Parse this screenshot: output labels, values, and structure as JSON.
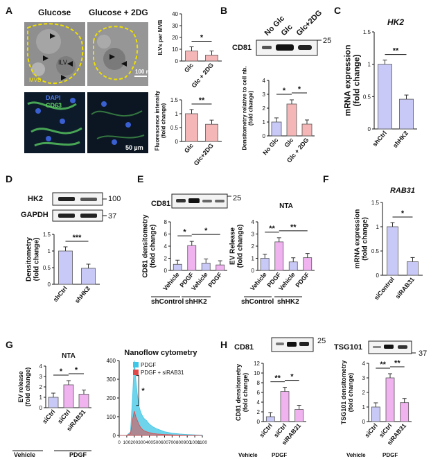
{
  "panels": {
    "A": {
      "letter": "A",
      "micrograph_labels": [
        "Glucose",
        "Glucose + 2DG"
      ],
      "em_labels": {
        "ilv": "ILV",
        "mvb": "MVB",
        "scale": "100 nm"
      },
      "fluor_labels": {
        "dapi": "DAPI",
        "cd63": "CD63",
        "scale": "50 µm"
      }
    },
    "B": {
      "letter": "B",
      "blot_label": "CD81",
      "lane_labels": [
        "No Glc",
        "Glc",
        "Glc+2DG"
      ],
      "marker": "25"
    },
    "C": {
      "letter": "C",
      "title": "HK2"
    },
    "D": {
      "letter": "D",
      "blot_labels": [
        "HK2",
        "GAPDH"
      ],
      "markers": [
        "100",
        "37"
      ]
    },
    "E": {
      "letter": "E",
      "blot_label": "CD81",
      "marker": "25",
      "group_labels": [
        "shControl",
        "shHK2"
      ]
    },
    "F": {
      "letter": "F",
      "title": "RAB31"
    },
    "G": {
      "letter": "G",
      "group_labels": [
        "Vehicle",
        "PDGF"
      ]
    },
    "H": {
      "letter": "H",
      "blot_labels": [
        "CD81",
        "TSG101"
      ],
      "markers": [
        "25",
        "37"
      ],
      "group_labels": [
        "Vehicle",
        "PDGF"
      ]
    }
  },
  "chart_data": [
    {
      "id": "A-ilv",
      "type": "bar",
      "ylabel": "ILVs per MVB",
      "categories": [
        "Glc",
        "Glc + 2DG"
      ],
      "values": [
        8.5,
        5
      ],
      "ylim": [
        0,
        40
      ],
      "yticks": [
        0,
        10,
        20,
        30,
        40
      ],
      "colors": [
        "#f4b6b6",
        "#f4b6b6"
      ],
      "sig": [
        {
          "from": 0,
          "to": 1,
          "label": "*"
        }
      ]
    },
    {
      "id": "A-fluor",
      "type": "bar",
      "ylabel": "Fluorescence intensity\n(fold change)",
      "categories": [
        "Glc",
        "Glc+2DG"
      ],
      "values": [
        1.0,
        0.62
      ],
      "ylim": [
        0,
        1.5
      ],
      "yticks": [
        0,
        0.5,
        1.0,
        1.5
      ],
      "colors": [
        "#f4b6b6",
        "#f4b6b6"
      ],
      "sig": [
        {
          "from": 0,
          "to": 1,
          "label": "**"
        }
      ]
    },
    {
      "id": "B-dens",
      "type": "bar",
      "ylabel": "Densitometry relative to cell nb.\n(fold change)",
      "categories": [
        "No Glc",
        "Glc",
        "Glc + 2DG"
      ],
      "values": [
        1.0,
        2.3,
        0.85
      ],
      "ylim": [
        0,
        4
      ],
      "yticks": [
        0,
        1,
        2,
        3,
        4
      ],
      "colors": [
        "#c9c9f7",
        "#f4b6b6",
        "#f4b6b6"
      ],
      "sig": [
        {
          "from": 0,
          "to": 1,
          "label": "*"
        },
        {
          "from": 1,
          "to": 2,
          "label": "*"
        }
      ]
    },
    {
      "id": "C-hk2",
      "type": "bar",
      "ylabel": "mRNA expression\n(fold change)",
      "title": "HK2",
      "categories": [
        "shCtrl",
        "shHK2"
      ],
      "values": [
        1.0,
        0.46
      ],
      "ylim": [
        0,
        1.5
      ],
      "yticks": [
        0.0,
        0.5,
        1.0,
        1.5
      ],
      "colors": [
        "#c9c9f7",
        "#c9c9f7"
      ],
      "sig": [
        {
          "from": 0,
          "to": 1,
          "label": "**"
        }
      ]
    },
    {
      "id": "D-dens",
      "type": "bar",
      "ylabel": "Densitometry\n(fold change)",
      "categories": [
        "shCtrl",
        "shHK2"
      ],
      "values": [
        1.0,
        0.48
      ],
      "ylim": [
        0,
        1.5
      ],
      "yticks": [
        0.0,
        0.5,
        1.0,
        1.5
      ],
      "colors": [
        "#c9c9f7",
        "#c9c9f7"
      ],
      "sig": [
        {
          "from": 0,
          "to": 1,
          "label": "***"
        }
      ]
    },
    {
      "id": "E-cd81",
      "type": "bar",
      "ylabel": "CD81 densitometry\n(fold change)",
      "categories": [
        "Vehicle",
        "PDGF",
        "Vehicle",
        "PDGF"
      ],
      "values": [
        1.0,
        4.1,
        1.2,
        0.9
      ],
      "ylim": [
        0,
        8
      ],
      "yticks": [
        0,
        2,
        4,
        6,
        8
      ],
      "colors": [
        "#c9c9f7",
        "#f0b3f0",
        "#c9c9f7",
        "#f0b3f0"
      ],
      "sig": [
        {
          "from": 0,
          "to": 1,
          "label": "*"
        },
        {
          "from": 1,
          "to": 3,
          "label": "*"
        }
      ]
    },
    {
      "id": "E-nta",
      "type": "bar",
      "title": "NTA",
      "ylabel": "EV Release\n(fold change)",
      "categories": [
        "Vehicle",
        "PDGF",
        "Vehicle",
        "PDGF"
      ],
      "values": [
        1.0,
        2.35,
        0.7,
        1.05
      ],
      "ylim": [
        0,
        4
      ],
      "yticks": [
        0,
        1,
        2,
        3,
        4
      ],
      "colors": [
        "#c9c9f7",
        "#f0b3f0",
        "#c9c9f7",
        "#f0b3f0"
      ],
      "sig": [
        {
          "from": 0,
          "to": 1,
          "label": "**"
        },
        {
          "from": 1,
          "to": 3,
          "label": "**"
        }
      ]
    },
    {
      "id": "F-rab31",
      "type": "bar",
      "title": "RAB31",
      "ylabel": "mRNA expression\n(fold change)",
      "categories": [
        "siControl",
        "siRAB31"
      ],
      "values": [
        1.0,
        0.28
      ],
      "ylim": [
        0,
        1.5
      ],
      "yticks": [
        0.0,
        0.5,
        1.0,
        1.5
      ],
      "colors": [
        "#c9c9f7",
        "#c9c9f7"
      ],
      "sig": [
        {
          "from": 0,
          "to": 1,
          "label": "*"
        }
      ]
    },
    {
      "id": "G-nta",
      "type": "bar",
      "title": "NTA",
      "ylabel": "EV release\n(fold change)",
      "categories": [
        "siCtrl",
        "siCtrl",
        "siRAB31"
      ],
      "values": [
        1.0,
        2.2,
        1.3
      ],
      "ylim": [
        0,
        4
      ],
      "yticks": [
        0,
        1,
        2,
        3,
        4
      ],
      "colors": [
        "#c9c9f7",
        "#f0b3f0",
        "#f0b3f0"
      ],
      "sig": [
        {
          "from": 0,
          "to": 1,
          "label": "*"
        },
        {
          "from": 1,
          "to": 2,
          "label": "*"
        }
      ]
    },
    {
      "id": "G-nfc",
      "type": "area",
      "title": "Nanoflow cytometry",
      "xlim": [
        0,
        1100
      ],
      "ylim": [
        0,
        400
      ],
      "xticks": [
        0,
        100,
        200,
        300,
        400,
        500,
        600,
        700,
        800,
        900,
        1000,
        1100
      ],
      "yticks": [
        0,
        100,
        200,
        300,
        400
      ],
      "x": [
        0,
        100,
        150,
        180,
        200,
        220,
        240,
        260,
        280,
        300,
        330,
        360,
        400,
        450,
        500,
        600,
        700,
        800,
        900,
        1000,
        1100
      ],
      "series": [
        {
          "name": "PDGF",
          "color": "#3ec6e6",
          "values": [
            0,
            0,
            20,
            230,
            400,
            300,
            220,
            160,
            130,
            110,
            90,
            80,
            60,
            45,
            35,
            20,
            12,
            8,
            5,
            3,
            2
          ]
        },
        {
          "name": "PDGF + siRAB31",
          "color": "#e04848",
          "values": [
            0,
            0,
            10,
            90,
            130,
            100,
            80,
            60,
            45,
            35,
            25,
            20,
            15,
            10,
            8,
            5,
            3,
            2,
            1,
            1,
            0
          ]
        }
      ],
      "sig": "*"
    },
    {
      "id": "H-cd81",
      "type": "bar",
      "ylabel": "CD81 densitometry\n(fold change)",
      "categories": [
        "siCtrl",
        "siCtrl",
        "siRAB31"
      ],
      "values": [
        1.0,
        6.2,
        2.5
      ],
      "ylim": [
        0,
        12
      ],
      "yticks": [
        0,
        2,
        4,
        6,
        8,
        10,
        12
      ],
      "colors": [
        "#c9c9f7",
        "#f0b3f0",
        "#f0b3f0"
      ],
      "sig": [
        {
          "from": 0,
          "to": 1,
          "label": "**"
        },
        {
          "from": 1,
          "to": 2,
          "label": "*"
        }
      ]
    },
    {
      "id": "H-tsg101",
      "type": "bar",
      "ylabel": "TSG101 densitometry\n(fold change)",
      "categories": [
        "siCtrl",
        "siCtrl",
        "siRAB31"
      ],
      "values": [
        1.0,
        3.0,
        1.3
      ],
      "ylim": [
        0,
        4
      ],
      "yticks": [
        0,
        1,
        2,
        3,
        4
      ],
      "colors": [
        "#c9c9f7",
        "#f0b3f0",
        "#f0b3f0"
      ],
      "sig": [
        {
          "from": 0,
          "to": 1,
          "label": "**"
        },
        {
          "from": 1,
          "to": 2,
          "label": "**"
        }
      ]
    }
  ]
}
